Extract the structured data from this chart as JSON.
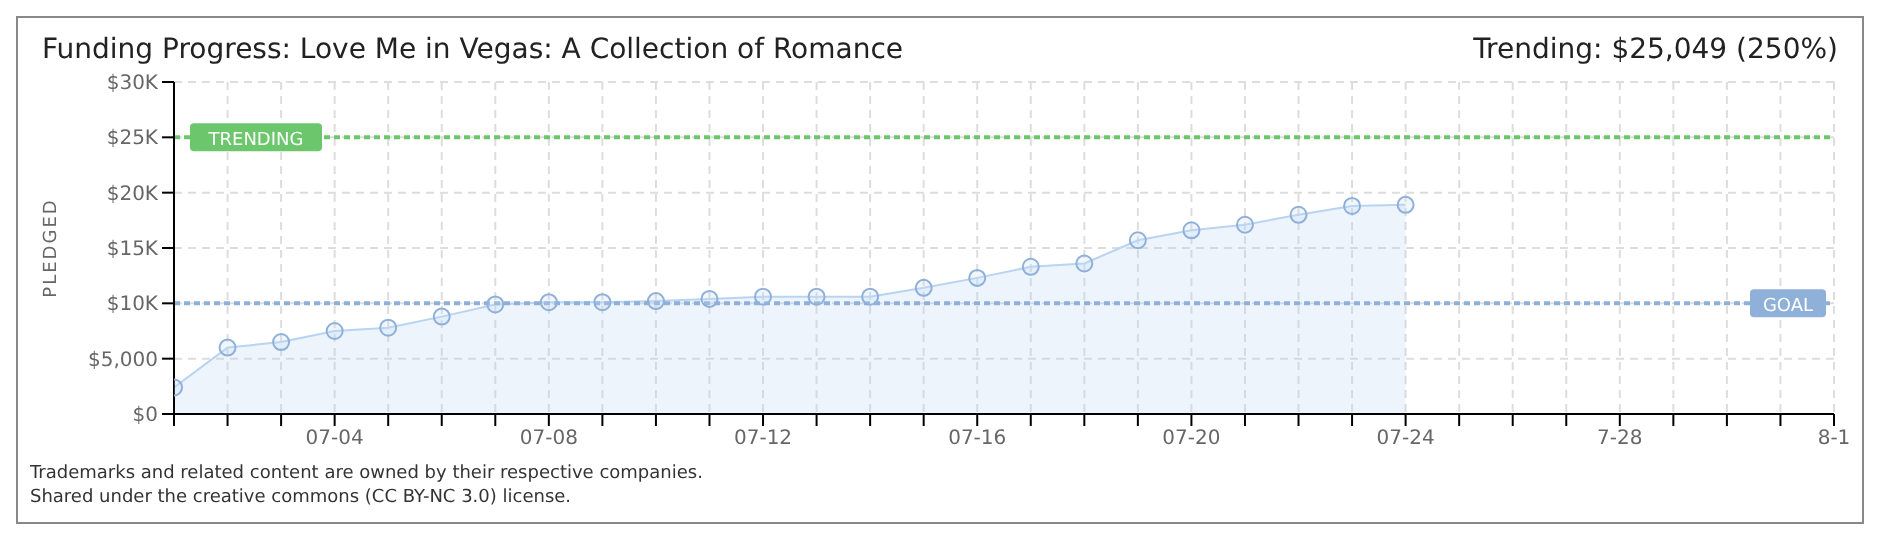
{
  "chart_data": {
    "type": "area",
    "title": "Funding Progress: Love Me in Vegas: A Collection of Romance",
    "subtitle": "Trending:  $25,049 (250%)",
    "ylabel": "PLEDGED",
    "x": [
      "--07-01",
      "--07-02",
      "--07-03",
      "--07-04",
      "--07-05",
      "--07-06",
      "--07-07",
      "--07-08",
      "--07-09",
      "--07-10",
      "--07-11",
      "--07-12",
      "--07-13",
      "--07-14",
      "--07-15",
      "--07-16",
      "--07-17",
      "--07-18",
      "--07-19",
      "--07-20",
      "--07-21",
      "--07-22",
      "--07-23",
      "--07-24"
    ],
    "series": [
      {
        "color": "#b9d3f2",
        "values": [
          2400,
          6000,
          6500,
          7500,
          7800,
          8800,
          9900,
          10100,
          10100,
          10200,
          10400,
          10600,
          10600,
          10600,
          11400,
          12300,
          13300,
          13600,
          15700,
          16600,
          17100,
          18000,
          18800,
          18900
        ]
      }
    ],
    "xlim": [
      "--07-01",
      "--08-01"
    ],
    "xticks": [
      {
        "value": "--07-01",
        "label": null
      },
      {
        "value": "--07-02",
        "label": null
      },
      {
        "value": "--07-03",
        "label": null
      },
      {
        "value": "--07-04",
        "label": "07-04"
      },
      {
        "value": "--07-05",
        "label": null
      },
      {
        "value": "--07-06",
        "label": null
      },
      {
        "value": "--07-07",
        "label": null
      },
      {
        "value": "--07-08",
        "label": "07-08"
      },
      {
        "value": "--07-09",
        "label": null
      },
      {
        "value": "--07-10",
        "label": null
      },
      {
        "value": "--07-11",
        "label": null
      },
      {
        "value": "--07-12",
        "label": "07-12"
      },
      {
        "value": "--07-13",
        "label": null
      },
      {
        "value": "--07-14",
        "label": null
      },
      {
        "value": "--07-15",
        "label": null
      },
      {
        "value": "--07-16",
        "label": "07-16"
      },
      {
        "value": "--07-17",
        "label": null
      },
      {
        "value": "--07-18",
        "label": null
      },
      {
        "value": "--07-19",
        "label": null
      },
      {
        "value": "--07-20",
        "label": "07-20"
      },
      {
        "value": "--07-21",
        "label": null
      },
      {
        "value": "--07-22",
        "label": null
      },
      {
        "value": "--07-23",
        "label": null
      },
      {
        "value": "--07-24",
        "label": "07-24"
      },
      {
        "value": "--07-25",
        "label": null
      },
      {
        "value": "--07-26",
        "label": null
      },
      {
        "value": "--07-27",
        "label": null
      },
      {
        "value": "--07-28",
        "label": "7-28"
      },
      {
        "value": "--07-29",
        "label": null
      },
      {
        "value": "--07-30",
        "label": null
      },
      {
        "value": "--07-31",
        "label": null
      },
      {
        "value": "--08-01",
        "label": "8-1"
      }
    ],
    "ylim": [
      0,
      30000
    ],
    "yticks": [
      {
        "value": 0,
        "label": "$0"
      },
      {
        "value": 5000,
        "label": "$5,000"
      },
      {
        "value": 10000,
        "label": "$10K"
      },
      {
        "value": 15000,
        "label": "$15K"
      },
      {
        "value": 20000,
        "label": "$20K"
      },
      {
        "value": 25000,
        "label": "$25K"
      },
      {
        "value": 30000,
        "label": "$30K"
      }
    ],
    "ref_lines": [
      {
        "axis": "y",
        "value": 25000,
        "label": "TRENDING",
        "color": "#6cc66c",
        "line_style": "dotted"
      },
      {
        "axis": "y",
        "value": 10000,
        "label": "GOAL",
        "color": "#8fb0d8",
        "line_style": "dotted"
      }
    ],
    "grid": true,
    "legend": false,
    "marker": "circle",
    "line_style": "solid",
    "annotations": [
      "Trademarks and related content are owned by their respective companies.",
      "Shared under the creative commons (CC BY-NC 3.0) license."
    ]
  }
}
